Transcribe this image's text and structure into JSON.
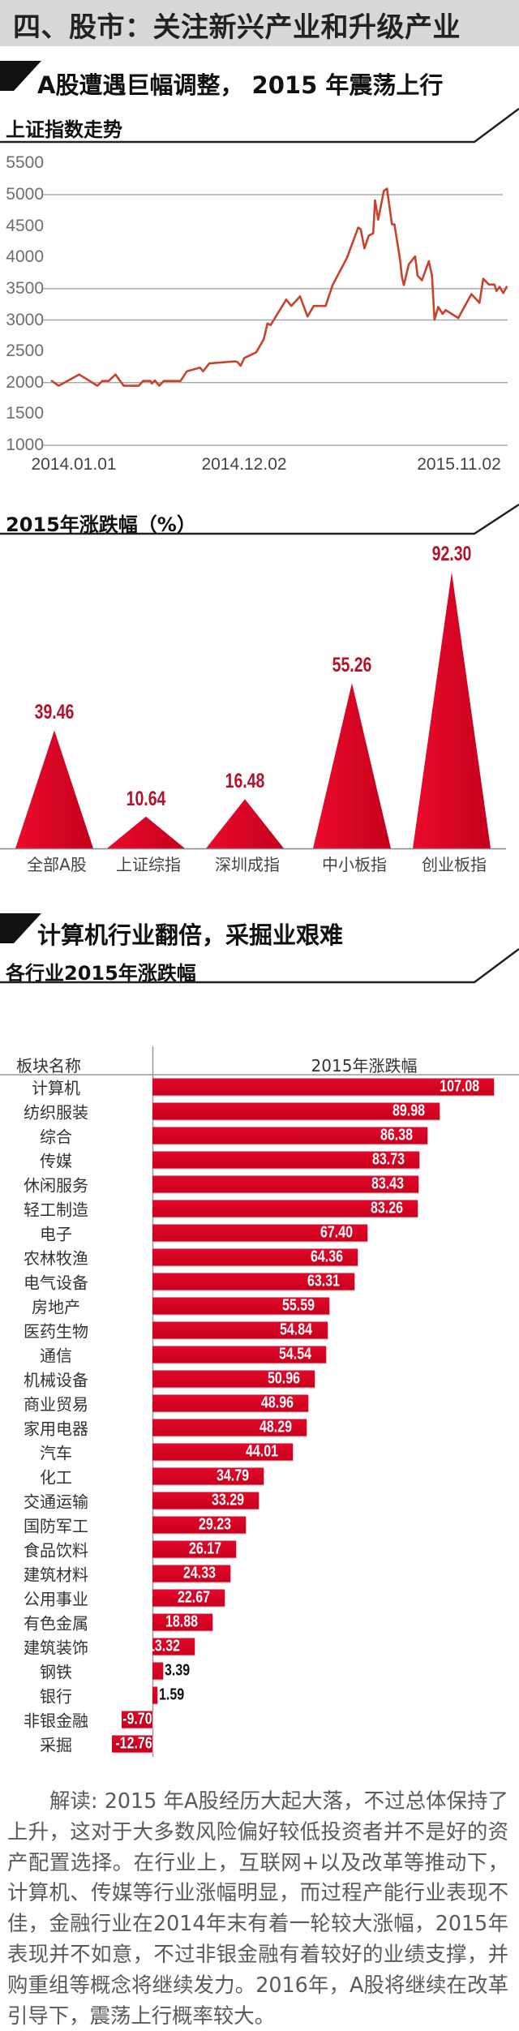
{
  "header": {
    "title": "四、股市：关注新兴产业和升级产业",
    "background": "#d8d8d8"
  },
  "section1": {
    "title": "A股遭遇巨幅调整， 2015 年震荡上行"
  },
  "section2": {
    "title": "计算机行业翻倍，采掘业艰难"
  },
  "colors": {
    "line": "#c8432b",
    "bar": "#d40a25",
    "value_label": "#b3122b"
  },
  "chart_data": [
    {
      "type": "line",
      "title": "上证指数走势",
      "ylim": [
        1000,
        5500
      ],
      "yticks": [
        "5500",
        "5000",
        "4500",
        "4000",
        "3500",
        "3000",
        "2500",
        "2000",
        "1500",
        "1000"
      ],
      "gridlines_at": [
        5000,
        3500,
        3000,
        2000,
        1000
      ],
      "xtick_labels": [
        "2014.01.01",
        "2014.12.02",
        "2015.11.02"
      ],
      "grid": true,
      "points": [
        [
          "2014-01-01",
          2036
        ],
        [
          "2014-01-13",
          1950
        ],
        [
          "2014-02-15",
          2130
        ],
        [
          "2014-03-16",
          1950
        ],
        [
          "2014-03-24",
          2026
        ],
        [
          "2014-04-03",
          2026
        ],
        [
          "2014-04-14",
          2130
        ],
        [
          "2014-04-27",
          1950
        ],
        [
          "2014-05-21",
          1950
        ],
        [
          "2014-05-28",
          2026
        ],
        [
          "2014-06-09",
          2026
        ],
        [
          "2014-06-11",
          1985
        ],
        [
          "2014-06-16",
          2036
        ],
        [
          "2014-06-23",
          1950
        ],
        [
          "2014-06-30",
          2026
        ],
        [
          "2014-07-27",
          2026
        ],
        [
          "2014-08-06",
          2180
        ],
        [
          "2014-08-27",
          2240
        ],
        [
          "2014-09-01",
          2180
        ],
        [
          "2014-09-11",
          2306
        ],
        [
          "2014-10-22",
          2340
        ],
        [
          "2014-10-26",
          2330
        ],
        [
          "2014-10-31",
          2270
        ],
        [
          "2014-11-06",
          2393
        ],
        [
          "2014-11-25",
          2485
        ],
        [
          "2014-12-07",
          2690
        ],
        [
          "2014-12-13",
          2944
        ],
        [
          "2014-12-18",
          2918
        ],
        [
          "2015-01-12",
          3326
        ],
        [
          "2015-01-20",
          3224
        ],
        [
          "2015-02-03",
          3377
        ],
        [
          "2015-02-15",
          3056
        ],
        [
          "2015-02-25",
          3224
        ],
        [
          "2015-03-16",
          3224
        ],
        [
          "2015-03-27",
          3556
        ],
        [
          "2015-04-19",
          3990
        ],
        [
          "2015-05-07",
          4475
        ],
        [
          "2015-05-11",
          4450
        ],
        [
          "2015-05-17",
          4143
        ],
        [
          "2015-05-24",
          4347
        ],
        [
          "2015-05-31",
          4383
        ],
        [
          "2015-06-03",
          4908
        ],
        [
          "2015-06-08",
          4602
        ],
        [
          "2015-06-17",
          5061
        ],
        [
          "2015-06-22",
          5097
        ],
        [
          "2015-06-30",
          4526
        ],
        [
          "2015-07-04",
          4526
        ],
        [
          "2015-07-13",
          3964
        ],
        [
          "2015-07-16",
          3684
        ],
        [
          "2015-07-19",
          3556
        ],
        [
          "2015-07-27",
          3888
        ],
        [
          "2015-08-06",
          4015
        ],
        [
          "2015-08-10",
          3709
        ],
        [
          "2015-08-17",
          3633
        ],
        [
          "2015-08-28",
          3939
        ],
        [
          "2015-09-02",
          3709
        ],
        [
          "2015-09-06",
          3005
        ],
        [
          "2015-09-12",
          3209
        ],
        [
          "2015-09-19",
          3097
        ],
        [
          "2015-09-24",
          3158
        ],
        [
          "2015-10-14",
          3031
        ],
        [
          "2015-11-04",
          3413
        ],
        [
          "2015-11-17",
          3275
        ],
        [
          "2015-11-23",
          3658
        ],
        [
          "2015-12-02",
          3566
        ],
        [
          "2015-12-11",
          3566
        ],
        [
          "2015-12-14",
          3464
        ],
        [
          "2015-12-19",
          3530
        ],
        [
          "2015-12-25",
          3429
        ],
        [
          "2015-12-31",
          3541
        ]
      ]
    },
    {
      "type": "bar",
      "title": "2015年涨跌幅（%）",
      "categories": [
        "全部A股",
        "上证综指",
        "深圳成指",
        "中小板指",
        "创业板指"
      ],
      "values": [
        39.46,
        10.64,
        16.48,
        55.26,
        92.3
      ],
      "value_labels": [
        "39.46",
        "10.64",
        "16.48",
        "55.26",
        "92.30"
      ]
    },
    {
      "type": "bar",
      "orientation": "horizontal",
      "title": "各行业2015年涨跌幅",
      "header": {
        "category": "板块名称",
        "value": "2015年涨跌幅"
      },
      "categories": [
        "计算机",
        "纺织服装",
        "综合",
        "传媒",
        "休闲服务",
        "轻工制造",
        "电子",
        "农林牧渔",
        "电气设备",
        "房地产",
        "医药生物",
        "通信",
        "机械设备",
        "商业贸易",
        "家用电器",
        "汽车",
        "化工",
        "交通运输",
        "国防军工",
        "食品饮料",
        "建筑材料",
        "公用事业",
        "有色金属",
        "建筑装饰",
        "钢铁",
        "银行",
        "非银金融",
        "采掘"
      ],
      "values": [
        107.08,
        89.98,
        86.38,
        83.73,
        83.43,
        83.26,
        67.4,
        64.36,
        63.31,
        55.59,
        54.84,
        54.54,
        50.96,
        48.96,
        48.29,
        44.01,
        34.79,
        33.29,
        29.23,
        26.17,
        24.33,
        22.67,
        18.88,
        13.32,
        3.39,
        1.59,
        -9.7,
        -12.76
      ],
      "value_labels": [
        "107.08",
        "89.98",
        "86.38",
        "83.73",
        "83.43",
        "83.26",
        "67.40",
        "64.36",
        "63.31",
        "55.59",
        "54.84",
        "54.54",
        "50.96",
        "48.96",
        "48.29",
        "44.01",
        "34.79",
        "33.29",
        "29.23",
        "26.17",
        "24.33",
        "22.67",
        "18.88",
        "13.32",
        "3.39",
        "1.59",
        "-9.70",
        "-12.76"
      ]
    }
  ],
  "commentary": "解读: 2015 年A股经历大起大落，不过总体保持了上升，这对于大多数风险偏好较低投资者并不是好的资产配置选择。在行业上，互联网+以及改革等推动下，计算机、传媒等行业涨幅明显，而过程产能行业表现不佳，金融行业在2014年末有着一轮较大涨幅，2015年表现并不如意，不过非银金融有着较好的业绩支撑，并购重组等概念将继续发力。2016年，A股将继续在改革引导下，震荡上行概率较大。"
}
